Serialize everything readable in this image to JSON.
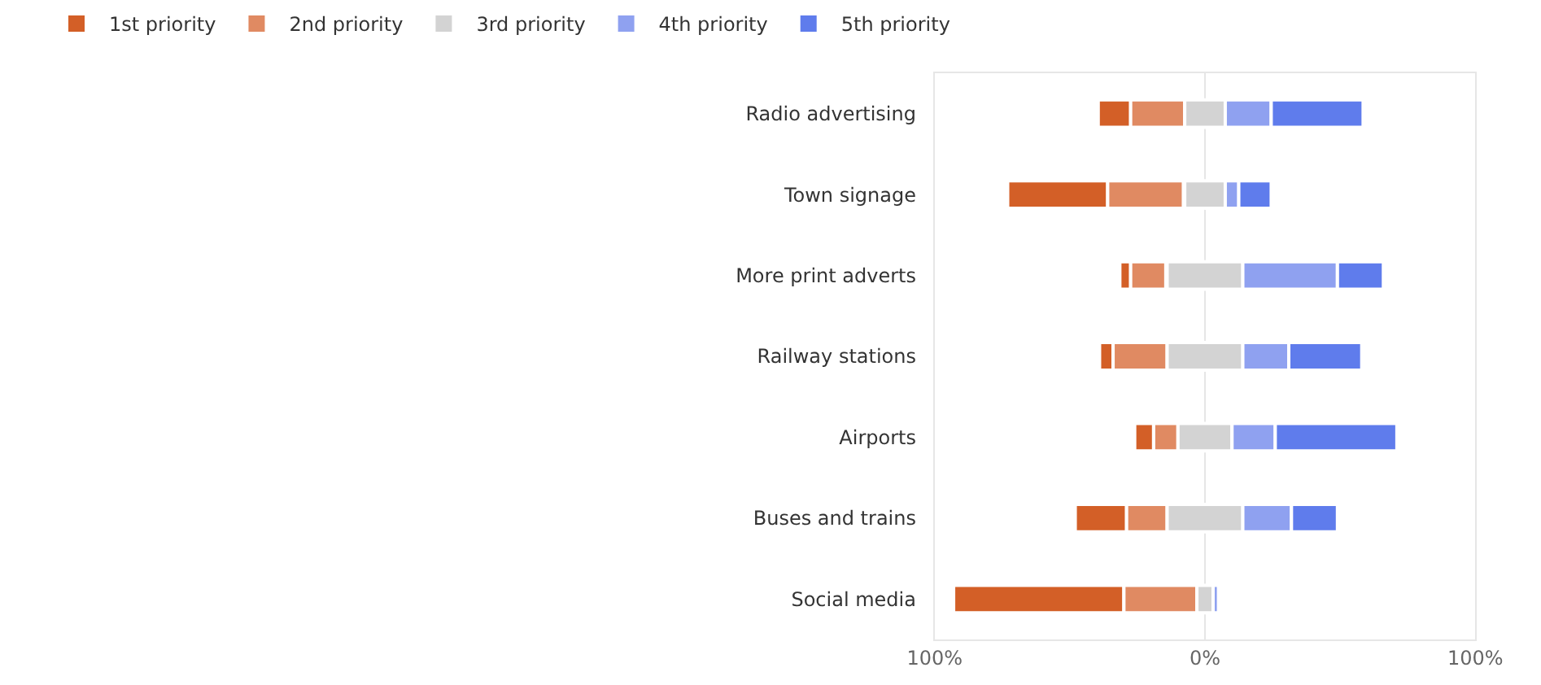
{
  "chart_data": {
    "type": "bar",
    "orientation": "horizontal",
    "categories": [
      "Radio advertising",
      "Town signage",
      "More print adverts",
      "Railway stations",
      "Airports",
      "Buses and trains",
      "Social media"
    ],
    "series": [
      {
        "name": "1st priority",
        "color": "#d35f27",
        "values": [
          12,
          37,
          4,
          5,
          7,
          19,
          63
        ],
        "base": [
          -39.5,
          -73,
          -31.5,
          -39,
          -26,
          -48,
          -93
        ]
      },
      {
        "name": "2nd priority",
        "color": "#e08a62",
        "values": [
          20,
          28,
          13,
          20,
          9,
          15,
          27
        ],
        "base": [
          -27.5,
          -36,
          -27.5,
          -34,
          -19,
          -29,
          -30
        ]
      },
      {
        "name": "3rd priority",
        "color": "#d3d3d3",
        "values": [
          15,
          15,
          28,
          28,
          20,
          28,
          6
        ],
        "base": [
          -7.5,
          -7.5,
          -14,
          -14,
          -10,
          -14,
          -3
        ]
      },
      {
        "name": "4th priority",
        "color": "#8fa1f0",
        "values": [
          17,
          5,
          35,
          17,
          16,
          18,
          2
        ],
        "base": [
          7.5,
          7.5,
          14,
          14,
          10,
          14,
          3
        ]
      },
      {
        "name": "5th priority",
        "color": "#5f7cec",
        "values": [
          34,
          12,
          17,
          27,
          45,
          17,
          null
        ],
        "base": [
          24.5,
          12.5,
          49,
          31,
          26,
          32,
          null
        ]
      }
    ],
    "xlim": [
      -100,
      100
    ],
    "xticks": [
      {
        "value": -100,
        "label": "100%"
      },
      {
        "value": 0,
        "label": "0%"
      },
      {
        "value": 100,
        "label": "100%"
      }
    ],
    "grid": "x",
    "legend": "top left"
  }
}
